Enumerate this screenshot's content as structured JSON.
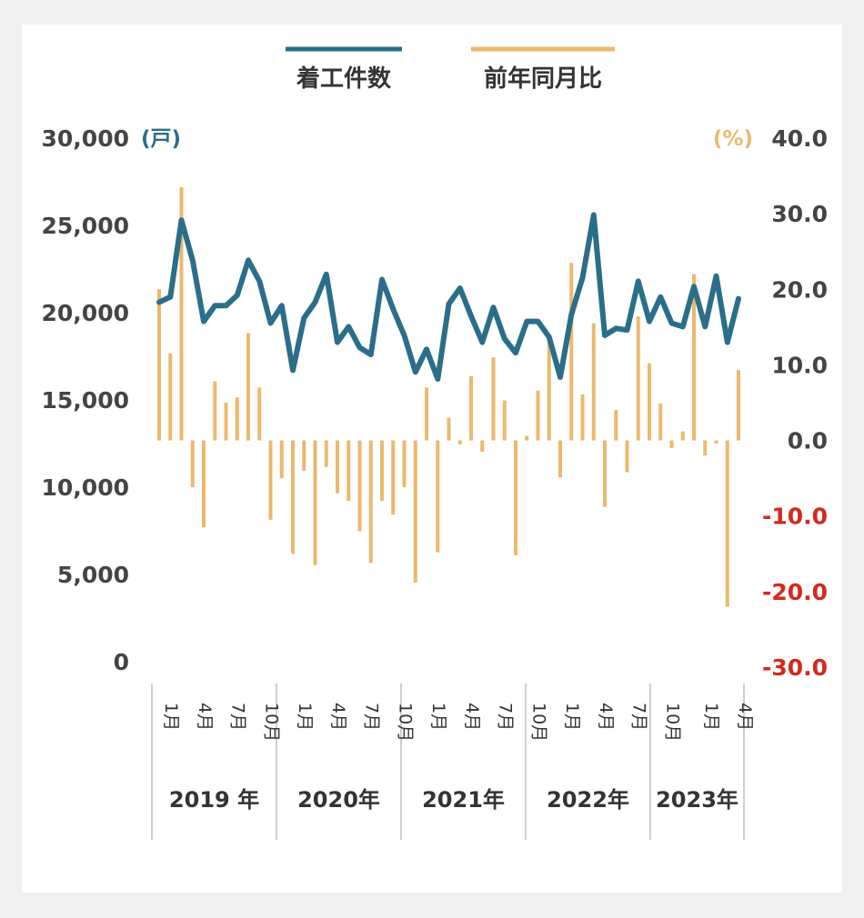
{
  "legend": {
    "count_label": "着工件数",
    "yoy_label": "前年同月比"
  },
  "units": {
    "left": "(戸)",
    "right": "(%)"
  },
  "chart_data": {
    "type": "bar+line",
    "title": "",
    "xlabel": "",
    "ylabel": "",
    "left_axis": {
      "unit": "戸",
      "range": [
        0,
        30000
      ],
      "ticks": [
        "0",
        "5,000",
        "10,000",
        "15,000",
        "20,000",
        "25,000",
        "30,000"
      ]
    },
    "right_axis": {
      "unit": "%",
      "range": [
        -30,
        40
      ],
      "ticks": [
        "-30.0",
        "-20.0",
        "-10.0",
        "0.0",
        "10.0",
        "20.0",
        "30.0",
        "40.0"
      ]
    },
    "years": [
      {
        "label": "2019 年",
        "months": [
          "1月",
          "4月",
          "7月",
          "10月"
        ]
      },
      {
        "label": "2020年",
        "months": [
          "1月",
          "4月",
          "7月",
          "10月"
        ]
      },
      {
        "label": "2021年",
        "months": [
          "1月",
          "4月",
          "7月",
          "10月"
        ]
      },
      {
        "label": "2022年",
        "months": [
          "1月",
          "4月",
          "7月",
          "10月"
        ]
      },
      {
        "label": "2023年",
        "months": [
          "1月",
          "4月"
        ]
      }
    ],
    "months_per_year": [
      12,
      12,
      12,
      12,
      5
    ],
    "legend_position": "top",
    "grid": false,
    "colors": {
      "line": "#2a6e8a",
      "bar": "#ebb96e",
      "negative_tick": "#d22a1f"
    },
    "series": [
      {
        "name": "着工件数",
        "type": "line",
        "axis": "left",
        "values": [
          20600,
          20900,
          25300,
          23000,
          19500,
          20400,
          20400,
          21000,
          23000,
          21800,
          19400,
          20400,
          16700,
          19700,
          20600,
          22200,
          18300,
          19200,
          18000,
          17600,
          21900,
          20200,
          18700,
          16600,
          17900,
          16200,
          20500,
          21400,
          19800,
          18300,
          20300,
          18500,
          17700,
          19500,
          19500,
          18600,
          16300,
          19900,
          22000,
          25600,
          18700,
          19100,
          19000,
          21800,
          19500,
          20900,
          19400,
          19200,
          21500,
          19200,
          22100,
          18300,
          20800
        ]
      },
      {
        "name": "前年同月比",
        "type": "bar",
        "axis": "right",
        "values": [
          20.0,
          11.5,
          33.5,
          -6.2,
          -11.5,
          7.8,
          5.0,
          5.7,
          14.2,
          7.0,
          -10.5,
          -5.0,
          -15.0,
          -4.0,
          -16.5,
          -3.5,
          -7.0,
          -8.0,
          -12.0,
          -16.2,
          -8.0,
          -9.8,
          -6.2,
          -18.8,
          7.0,
          -14.8,
          3.0,
          -0.5,
          8.5,
          -1.5,
          11.0,
          5.3,
          -15.2,
          0.6,
          6.6,
          13.2,
          -4.9,
          23.5,
          6.1,
          15.5,
          -8.8,
          4.0,
          -4.2,
          16.4,
          10.2,
          4.9,
          -1.0,
          1.2,
          22.0,
          -2.0,
          -0.4,
          -22.0,
          9.3
        ]
      }
    ]
  }
}
